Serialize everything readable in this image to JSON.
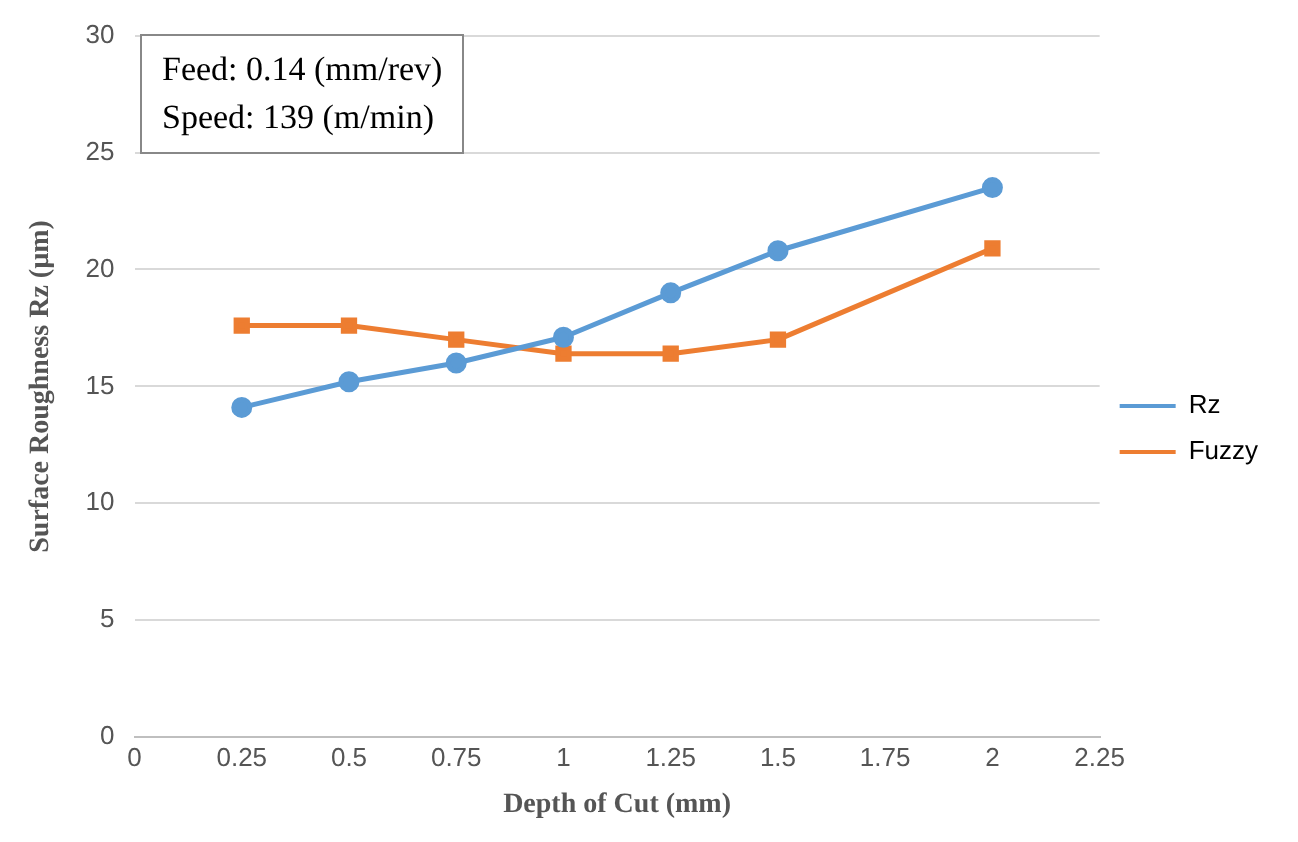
{
  "chart_data": {
    "type": "line",
    "xlabel": "Depth of Cut (mm)",
    "ylabel": "Surface Roughness Rz (µm)",
    "x": [
      0.25,
      0.5,
      0.75,
      1,
      1.25,
      1.5,
      2
    ],
    "series": [
      {
        "name": "Rz",
        "color": "#5b9bd5",
        "marker": "circle",
        "values": [
          14.1,
          15.2,
          16.0,
          17.1,
          19.0,
          20.8,
          23.5
        ]
      },
      {
        "name": "Fuzzy",
        "color": "#ed7d31",
        "marker": "square",
        "values": [
          17.6,
          17.6,
          17.0,
          16.4,
          16.4,
          17.0,
          20.9
        ]
      }
    ],
    "xlim": [
      0,
      2.25
    ],
    "xticks": [
      0,
      0.25,
      0.5,
      0.75,
      1,
      1.25,
      1.5,
      1.75,
      2,
      2.25
    ],
    "ylim": [
      0,
      30
    ],
    "yticks": [
      0,
      5,
      10,
      15,
      20,
      25,
      30
    ],
    "grid": "y",
    "legend": "right",
    "line_style": "solid",
    "annotations": [
      "Feed: 0.14 (mm/rev)",
      "Speed: 139 (m/min)"
    ]
  }
}
